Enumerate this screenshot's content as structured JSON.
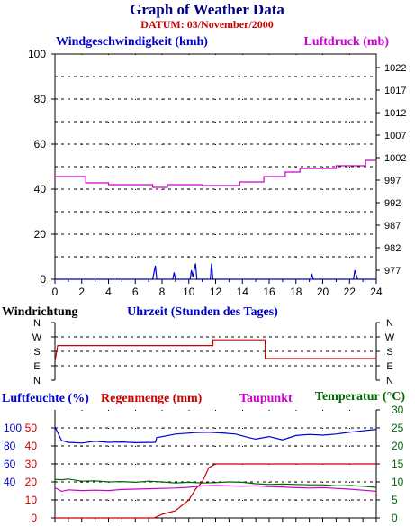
{
  "title": "Graph of Weather Data",
  "subtitle": "DATUM: 03/November/2000",
  "colors": {
    "title": "#000080",
    "subtitle": "#cc0000",
    "wind": "#0000cc",
    "pressure": "#cc00cc",
    "direction": "#cc0000",
    "humidity": "#0000cc",
    "rain": "#cc0000",
    "dewpoint": "#cc00cc",
    "temperature": "#006600"
  },
  "chart_data": [
    {
      "type": "line",
      "panel": "wind-pressure",
      "xlabel": "Uhrzeit (Stunden des Tages)",
      "xlim": [
        0,
        24
      ],
      "x_ticks": [
        "0",
        "2",
        "4",
        "6",
        "8",
        "10",
        "12",
        "14",
        "16",
        "18",
        "20",
        "22",
        "24"
      ],
      "left_axis": {
        "label": "Windgeschwindigkeit (kmh)",
        "lim": [
          0,
          100
        ],
        "ticks": [
          "0",
          "20",
          "40",
          "60",
          "80",
          "100"
        ]
      },
      "right_axis": {
        "label": "Luftdruck (mb)",
        "lim": [
          975,
          1025
        ],
        "ticks": [
          "977",
          "982",
          "987",
          "992",
          "997",
          "1002",
          "1007",
          "1012",
          "1017",
          "1022"
        ]
      },
      "grid": true,
      "series": [
        {
          "axis": "right",
          "points": [
            [
              0,
              997.8
            ],
            [
              2.3,
              997.8
            ],
            [
              2.3,
              996.4
            ],
            [
              4,
              996.4
            ],
            [
              4,
              996.0
            ],
            [
              7.3,
              996.0
            ],
            [
              7.3,
              995.4
            ],
            [
              8.4,
              995.4
            ],
            [
              8.4,
              996.0
            ],
            [
              11,
              996.0
            ],
            [
              11,
              995.8
            ],
            [
              13.8,
              995.8
            ],
            [
              13.8,
              996.6
            ],
            [
              15.6,
              996.6
            ],
            [
              15.6,
              997.8
            ],
            [
              17.2,
              997.8
            ],
            [
              17.2,
              998.8
            ],
            [
              18.3,
              998.8
            ],
            [
              18.3,
              999.6
            ],
            [
              21,
              999.6
            ],
            [
              21,
              1000.2
            ],
            [
              23.2,
              1000.2
            ],
            [
              23.2,
              1001.4
            ],
            [
              24,
              1001.4
            ]
          ]
        },
        {
          "axis": "left",
          "points": [
            [
              0,
              0
            ],
            [
              7.3,
              0
            ],
            [
              7.5,
              6
            ],
            [
              7.6,
              0
            ],
            [
              8.8,
              0
            ],
            [
              8.9,
              3
            ],
            [
              9.0,
              0
            ],
            [
              10.1,
              0
            ],
            [
              10.2,
              4
            ],
            [
              10.3,
              1
            ],
            [
              10.5,
              7
            ],
            [
              10.6,
              0
            ],
            [
              11.6,
              0
            ],
            [
              11.7,
              7
            ],
            [
              11.8,
              0
            ],
            [
              19.1,
              0
            ],
            [
              19.2,
              2
            ],
            [
              19.3,
              0
            ],
            [
              22.3,
              0
            ],
            [
              22.4,
              4
            ],
            [
              22.6,
              0
            ],
            [
              24,
              0
            ]
          ]
        }
      ]
    },
    {
      "type": "line",
      "panel": "wind-direction",
      "ylabel": "Windrichtung",
      "categories": [
        "N",
        "W",
        "S",
        "E",
        "N"
      ],
      "xlim": [
        0,
        24
      ],
      "grid": true,
      "series": [
        {
          "values_index": [
            [
              0,
              2.7
            ],
            [
              0.2,
              1.6
            ],
            [
              11.8,
              1.6
            ],
            [
              11.8,
              1.2
            ],
            [
              15.7,
              1.2
            ],
            [
              15.7,
              2.5
            ],
            [
              24,
              2.5
            ]
          ]
        }
      ]
    },
    {
      "type": "line",
      "panel": "humidity-rain-dew-temp",
      "xlim": [
        0,
        24
      ],
      "grid": true,
      "axes": {
        "humidity": {
          "label": "Luftfeuchte (%)",
          "ticks": [
            "40",
            "60",
            "80",
            "100"
          ]
        },
        "rain": {
          "label": "Regenmenge (mm)",
          "ticks": [
            "0",
            "10",
            "20",
            "30",
            "40",
            "50"
          ],
          "lim": [
            0,
            60
          ]
        },
        "dewpoint": {
          "label": "Taupunkt"
        },
        "temperature": {
          "label": "Temperatur (°C)",
          "ticks": [
            "0",
            "5",
            "10",
            "15",
            "20",
            "25",
            "30"
          ],
          "lim": [
            0,
            30
          ]
        }
      },
      "series": [
        {
          "key": "humidity",
          "points": [
            [
              0,
              25.3
            ],
            [
              0.5,
              21.5
            ],
            [
              1,
              21.0
            ],
            [
              2,
              20.8
            ],
            [
              3,
              21.3
            ],
            [
              4,
              21.0
            ],
            [
              5,
              21.1
            ],
            [
              6,
              20.9
            ],
            [
              7.5,
              21.0
            ],
            [
              7.6,
              22.3
            ],
            [
              9,
              23.3
            ],
            [
              10.5,
              23.7
            ],
            [
              11.5,
              23.8
            ],
            [
              12.5,
              23.6
            ],
            [
              13.5,
              23.3
            ],
            [
              14.5,
              22.3
            ],
            [
              15,
              21.9
            ],
            [
              16,
              22.6
            ],
            [
              17,
              21.7
            ],
            [
              18,
              22.9
            ],
            [
              19,
              23.2
            ],
            [
              20,
              23.0
            ],
            [
              21,
              23.3
            ],
            [
              22,
              23.8
            ],
            [
              23,
              24.2
            ],
            [
              24,
              24.6
            ]
          ]
        },
        {
          "key": "rain",
          "points": [
            [
              0,
              0
            ],
            [
              7.4,
              0
            ],
            [
              8,
              1
            ],
            [
              9,
              2
            ],
            [
              10,
              5
            ],
            [
              10.5,
              8
            ],
            [
              11,
              10
            ],
            [
              11.5,
              14
            ],
            [
              12,
              15
            ],
            [
              13,
              15
            ],
            [
              14,
              15
            ],
            [
              16,
              15
            ],
            [
              18,
              15
            ],
            [
              20,
              15
            ],
            [
              22,
              15
            ],
            [
              23,
              15
            ],
            [
              24,
              15
            ]
          ]
        },
        {
          "key": "dewpoint",
          "points": [
            [
              0,
              8.4
            ],
            [
              0.5,
              7.4
            ],
            [
              1,
              7.8
            ],
            [
              2,
              7.6
            ],
            [
              3,
              7.7
            ],
            [
              4,
              7.6
            ],
            [
              5,
              7.9
            ],
            [
              6,
              8.0
            ],
            [
              7,
              8.1
            ],
            [
              8,
              8.2
            ],
            [
              9,
              8.3
            ],
            [
              10,
              8.5
            ],
            [
              11,
              8.9
            ],
            [
              12,
              9.0
            ],
            [
              13,
              8.9
            ],
            [
              14,
              8.8
            ],
            [
              15,
              8.9
            ],
            [
              16,
              8.7
            ],
            [
              17,
              8.6
            ],
            [
              18,
              8.4
            ],
            [
              19,
              8.3
            ],
            [
              20,
              8.4
            ],
            [
              21,
              8.2
            ],
            [
              22,
              8.0
            ],
            [
              23,
              7.7
            ],
            [
              24,
              7.4
            ]
          ]
        },
        {
          "key": "temperature",
          "points": [
            [
              0,
              10.7
            ],
            [
              0.5,
              10.6
            ],
            [
              1,
              10.8
            ],
            [
              2,
              10.2
            ],
            [
              3,
              10.3
            ],
            [
              4,
              10.0
            ],
            [
              5,
              10.1
            ],
            [
              6,
              9.9
            ],
            [
              7,
              10.2
            ],
            [
              8,
              10.0
            ],
            [
              9,
              9.7
            ],
            [
              10,
              9.9
            ],
            [
              11,
              9.7
            ],
            [
              12,
              9.8
            ],
            [
              13,
              10.0
            ],
            [
              14,
              9.9
            ],
            [
              15,
              9.5
            ],
            [
              16,
              9.3
            ],
            [
              17,
              9.4
            ],
            [
              18,
              9.3
            ],
            [
              19,
              9.2
            ],
            [
              20,
              9.2
            ],
            [
              21,
              8.9
            ],
            [
              22,
              9.0
            ],
            [
              23,
              8.8
            ],
            [
              24,
              8.5
            ]
          ]
        }
      ]
    }
  ]
}
